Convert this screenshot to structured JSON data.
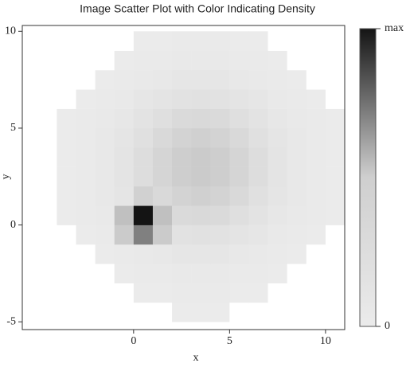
{
  "chart_data": {
    "type": "heatmap",
    "title": "Image Scatter Plot with Color Indicating Density",
    "x_label": "x",
    "y_label": "y",
    "x_bins": [
      -4,
      -3,
      -2,
      -1,
      0,
      1,
      2,
      3,
      4,
      5,
      6,
      7,
      8,
      9,
      10,
      11
    ],
    "y_bins": [
      -5,
      -4,
      -3,
      -2,
      -1,
      0,
      1,
      2,
      3,
      4,
      5,
      6,
      7,
      8,
      9,
      10
    ],
    "z": [
      [
        0,
        0,
        0,
        0,
        0,
        0,
        0.001,
        0.001,
        0.001,
        0,
        0,
        0,
        0,
        0,
        0
      ],
      [
        0,
        0,
        0,
        0,
        0.001,
        0.002,
        0.003,
        0.003,
        0.003,
        0.002,
        0.001,
        0,
        0,
        0,
        0
      ],
      [
        0,
        0,
        0,
        0.002,
        0.004,
        0.006,
        0.008,
        0.009,
        0.008,
        0.006,
        0.004,
        0.002,
        0,
        0,
        0
      ],
      [
        0,
        0,
        0.002,
        0.005,
        0.01,
        0.016,
        0.021,
        0.023,
        0.021,
        0.016,
        0.01,
        0.005,
        0.002,
        0,
        0
      ],
      [
        0,
        0.001,
        0.004,
        0.15,
        0.5,
        0.15,
        0.044,
        0.048,
        0.044,
        0.033,
        0.021,
        0.011,
        0.004,
        0.001,
        0
      ],
      [
        0.001,
        0.003,
        0.008,
        0.2,
        1,
        0.2,
        0.078,
        0.085,
        0.078,
        0.058,
        0.037,
        0.019,
        0.008,
        0.003,
        0.001
      ],
      [
        0.001,
        0.004,
        0.012,
        0.027,
        0.12,
        0.085,
        0.113,
        0.124,
        0.113,
        0.085,
        0.053,
        0.027,
        0.012,
        0.004,
        0.001
      ],
      [
        0.001,
        0.005,
        0.014,
        0.033,
        0.064,
        0.103,
        0.136,
        0.15,
        0.136,
        0.103,
        0.064,
        0.033,
        0.014,
        0.005,
        0.001
      ],
      [
        0.001,
        0.005,
        0.014,
        0.033,
        0.064,
        0.103,
        0.136,
        0.15,
        0.136,
        0.103,
        0.064,
        0.033,
        0.014,
        0.005,
        0.001
      ],
      [
        0.001,
        0.004,
        0.012,
        0.027,
        0.053,
        0.085,
        0.113,
        0.124,
        0.113,
        0.085,
        0.053,
        0.027,
        0.012,
        0.004,
        0.001
      ],
      [
        0.001,
        0.003,
        0.008,
        0.019,
        0.037,
        0.058,
        0.078,
        0.085,
        0.078,
        0.058,
        0.037,
        0.019,
        0.008,
        0.003,
        0.001
      ],
      [
        0,
        0.001,
        0.004,
        0.011,
        0.021,
        0.033,
        0.044,
        0.048,
        0.044,
        0.033,
        0.021,
        0.011,
        0.004,
        0.001,
        0
      ],
      [
        0,
        0,
        0.002,
        0.005,
        0.01,
        0.016,
        0.021,
        0.023,
        0.021,
        0.016,
        0.01,
        0.005,
        0.002,
        0,
        0
      ],
      [
        0,
        0,
        0,
        0.002,
        0.004,
        0.006,
        0.008,
        0.009,
        0.008,
        0.006,
        0.004,
        0.002,
        0,
        0,
        0
      ],
      [
        0,
        0,
        0,
        0,
        0.001,
        0.002,
        0.003,
        0.003,
        0.003,
        0.002,
        0.001,
        0,
        0,
        0,
        0
      ]
    ],
    "xlim": [
      -5.8,
      11
    ],
    "ylim": [
      -5.4,
      10.3
    ],
    "xticks": [
      0,
      5,
      10
    ],
    "yticks": [
      -5,
      0,
      5,
      10
    ],
    "clim": [
      0,
      1
    ],
    "cticks": [
      0,
      {
        "value": 1,
        "label": "max"
      }
    ]
  }
}
